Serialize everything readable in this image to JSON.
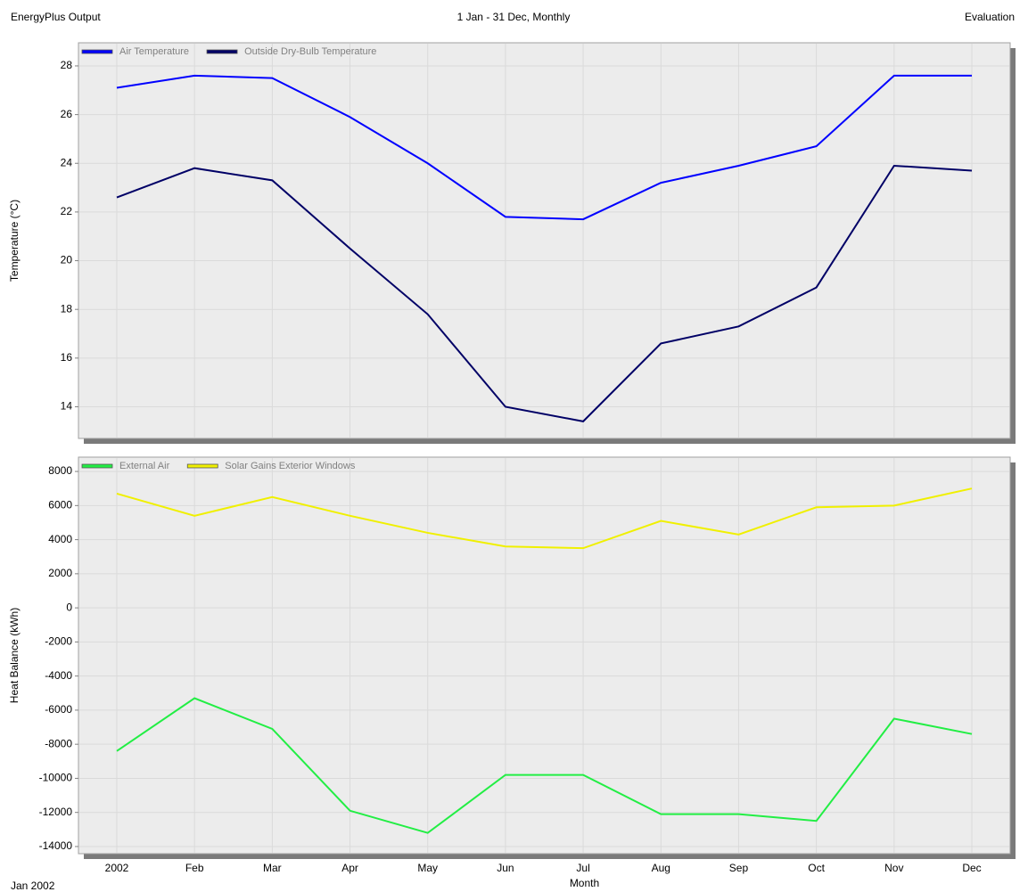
{
  "header": {
    "left": "EnergyPlus Output",
    "center": "1 Jan - 31 Dec, Monthly",
    "right": "Evaluation"
  },
  "footer": {
    "start_label": "Jan  2002"
  },
  "chart_data": [
    {
      "type": "line",
      "y_label": "Temperature (°C)",
      "categories": [
        null,
        null,
        null,
        null,
        null,
        null,
        null,
        null,
        null,
        null,
        null,
        null
      ],
      "series": [
        {
          "name": "Air Temperature",
          "color": "#0000ff",
          "values": [
            27.1,
            27.6,
            27.5,
            25.9,
            24.0,
            21.8,
            21.7,
            23.2,
            23.9,
            24.7,
            27.6,
            27.6
          ]
        },
        {
          "name": "Outside Dry-Bulb Temperature",
          "color": "#000066",
          "values": [
            22.6,
            23.8,
            23.3,
            20.5,
            17.8,
            14.0,
            13.4,
            16.6,
            17.3,
            18.9,
            23.9,
            23.7
          ]
        }
      ],
      "ylim": [
        12.7,
        28.95
      ],
      "yticks": [
        14,
        16,
        18,
        20,
        22,
        24,
        26,
        28
      ],
      "grid": true,
      "legend": "top-left"
    },
    {
      "type": "line",
      "y_label": "Heat Balance (kWh)",
      "x_label": "Month",
      "categories": [
        "2002",
        "Feb",
        "Mar",
        "Apr",
        "May",
        "Jun",
        "Jul",
        "Aug",
        "Sep",
        "Oct",
        "Nov",
        "Dec"
      ],
      "series": [
        {
          "name": "External Air",
          "color": "#22ee44",
          "values": [
            -8400,
            -5300,
            -7100,
            -11900,
            -13200,
            -9800,
            -9800,
            -12100,
            -12100,
            -12500,
            -6500,
            -7400
          ]
        },
        {
          "name": "Solar Gains Exterior Windows",
          "color": "#f0f000",
          "values": [
            6700,
            5400,
            6500,
            5400,
            4400,
            3600,
            3500,
            5100,
            4300,
            5900,
            6000,
            7000
          ]
        }
      ],
      "ylim": [
        -14420,
        8840
      ],
      "yticks": [
        -14000,
        -12000,
        -10000,
        -8000,
        -6000,
        -4000,
        -2000,
        0,
        2000,
        4000,
        6000,
        8000
      ],
      "grid": true,
      "legend": "top-left"
    }
  ]
}
